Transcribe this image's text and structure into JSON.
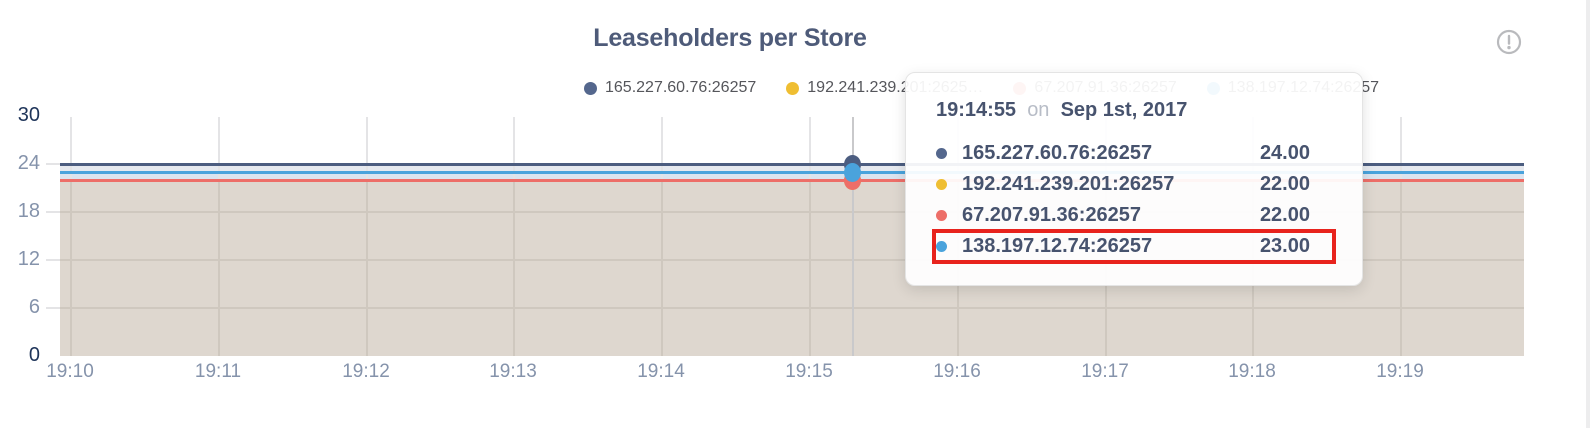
{
  "panel": {
    "title": "Leaseholders per Store"
  },
  "legend": {
    "items": [
      {
        "label": "165.227.60.76:26257",
        "color": "#54678d"
      },
      {
        "label": "192.241.239.201:2625…",
        "color": "#efbe32"
      },
      {
        "label": "67.207.91.36:26257",
        "color": "#ed6e68"
      },
      {
        "label": "138.197.12.74:26257",
        "color": "#4aa3dc"
      }
    ]
  },
  "tooltip": {
    "time": "19:14:55",
    "conjunction": "on",
    "date": "Sep 1st, 2017",
    "highlight_color": "#e8231d",
    "rows": [
      {
        "name": "165.227.60.76:26257",
        "value": "24.00",
        "color": "#54678d",
        "highlighted": false
      },
      {
        "name": "192.241.239.201:26257",
        "value": "22.00",
        "color": "#efbe32",
        "highlighted": false
      },
      {
        "name": "67.207.91.36:26257",
        "value": "22.00",
        "color": "#ed6e68",
        "highlighted": false
      },
      {
        "name": "138.197.12.74:26257",
        "value": "23.00",
        "color": "#4aa3dc",
        "highlighted": true
      }
    ]
  },
  "chart_data": {
    "type": "line",
    "title": "Leaseholders per Store",
    "xlabel": "",
    "ylabel": "",
    "ylim": [
      0,
      30
    ],
    "grid": true,
    "legend_position": "top",
    "x_ticks": [
      "19:10",
      "19:11",
      "19:12",
      "19:13",
      "19:14",
      "19:15",
      "19:16",
      "19:17",
      "19:18",
      "19:19"
    ],
    "y_ticks": [
      "30",
      "24",
      "18",
      "12",
      "6",
      "0"
    ],
    "y_tick_values": [
      30,
      24,
      18,
      12,
      6,
      0
    ],
    "series": [
      {
        "name": "165.227.60.76:26257",
        "color": "#4c5d80",
        "values": [
          24,
          24,
          24,
          24,
          24,
          24,
          24,
          24,
          24,
          24
        ]
      },
      {
        "name": "192.241.239.201:26257",
        "color": "#efbe32",
        "values": [
          22,
          22,
          22,
          22,
          22,
          22,
          22,
          22,
          22,
          22
        ]
      },
      {
        "name": "67.207.91.36:26257",
        "color": "#ed6e68",
        "values": [
          22,
          22,
          22,
          22,
          22,
          22,
          22,
          22,
          22,
          22
        ]
      },
      {
        "name": "138.197.12.74:26257",
        "color": "#4aa3dc",
        "values": [
          23,
          23,
          23,
          23,
          23,
          23,
          23,
          23,
          23,
          23
        ]
      }
    ],
    "hover": {
      "time": "19:14:55",
      "date": "Sep 1st, 2017",
      "values": [
        24,
        22,
        22,
        23
      ]
    },
    "colors": {
      "fill_below_lines": "#ded7cf",
      "band_24_to_23": "#e6e9ef",
      "band_23_to_22": "#dbe4ef",
      "grid_on_white": "#e4e4e6",
      "grid_on_fill": "#cfc8bf",
      "hover_guideline": "#c9c9cb",
      "axis_tick": "#8593ab",
      "axis_tick_extreme": "#1e3459"
    }
  }
}
